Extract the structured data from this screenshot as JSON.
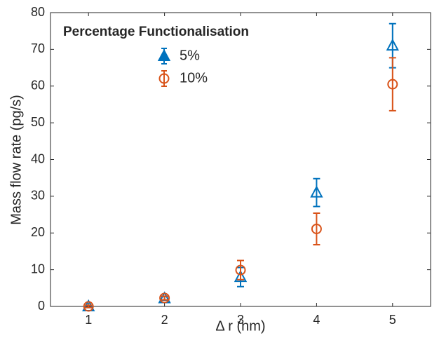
{
  "chart_data": {
    "type": "errorbar",
    "xlabel": "Δ r (nm)",
    "ylabel": "Mass flow rate (pg/s)",
    "legend_title": "Percentage Functionalisation",
    "legend_position": "upper left",
    "x": [
      1,
      2,
      3,
      4,
      5
    ],
    "series": [
      {
        "name": "5%",
        "color": "#0072bd",
        "marker": "triangle",
        "values": [
          0,
          2.2,
          8,
          31,
          71
        ],
        "errors": [
          0.3,
          0.5,
          2.6,
          3.8,
          6
        ]
      },
      {
        "name": "10%",
        "color": "#d95319",
        "marker": "circle",
        "values": [
          0,
          2.3,
          9.9,
          21.1,
          60.5
        ],
        "errors": [
          0.3,
          0.5,
          2.6,
          4.3,
          7.2
        ]
      }
    ],
    "xlim": [
      0.5,
      5.5
    ],
    "xticks": [
      1,
      2,
      3,
      4,
      5
    ],
    "ylim": [
      0,
      80
    ],
    "yticks": [
      0,
      10,
      20,
      30,
      40,
      50,
      60,
      70,
      80
    ]
  }
}
